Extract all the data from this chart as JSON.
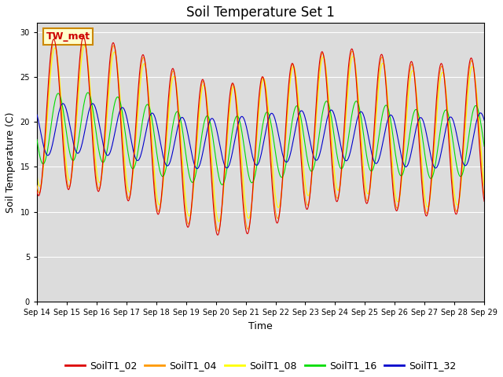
{
  "title": "Soil Temperature Set 1",
  "xlabel": "Time",
  "ylabel": "Soil Temperature (C)",
  "ylim": [
    0,
    31
  ],
  "yticks": [
    0,
    5,
    10,
    15,
    20,
    25,
    30
  ],
  "line_colors": {
    "SoilT1_02": "#dd0000",
    "SoilT1_04": "#ff9900",
    "SoilT1_08": "#ffff00",
    "SoilT1_16": "#00dd00",
    "SoilT1_32": "#0000cc"
  },
  "legend_labels": [
    "SoilT1_02",
    "SoilT1_04",
    "SoilT1_08",
    "SoilT1_16",
    "SoilT1_32"
  ],
  "annotation_text": "TW_met",
  "annotation_color": "#cc0000",
  "annotation_bg": "#ffffcc",
  "annotation_border": "#cc8800",
  "plot_bg": "#dcdcdc",
  "grid_color": "#ffffff",
  "line_width": 0.8,
  "title_fontsize": 12,
  "axis_fontsize": 9,
  "tick_fontsize": 7,
  "legend_fontsize": 9,
  "figwidth": 6.4,
  "figheight": 4.8,
  "dpi": 100
}
